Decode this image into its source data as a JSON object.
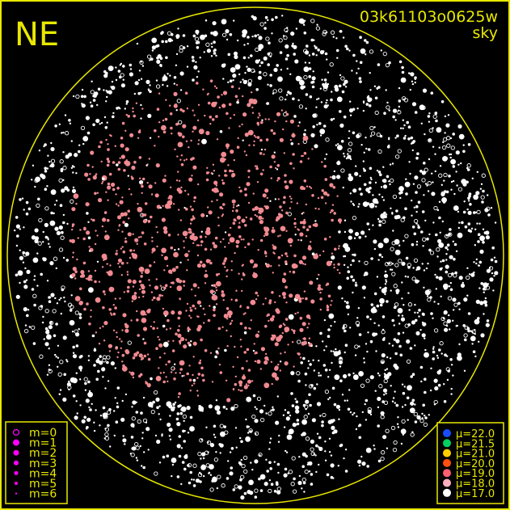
{
  "chart_data": {
    "type": "scatter",
    "title": "03k61103o0625w",
    "subtitle": "sky",
    "corner_label": "NE",
    "frame_color": "#e8e800",
    "horizon_color": "#e8e800",
    "magnitude_legend": {
      "color": "#ff00ff",
      "entries": [
        "m=0",
        "m=1",
        "m=2",
        "m=3",
        "m=4",
        "m=5",
        "m=6"
      ]
    },
    "sky_brightness_legend": {
      "entries": [
        {
          "label": "μ=22.0",
          "color": "#1a4cff"
        },
        {
          "label": "μ=21.5",
          "color": "#00d060"
        },
        {
          "label": "μ=21.0",
          "color": "#ffd000"
        },
        {
          "label": "μ=20.0",
          "color": "#ff5010"
        },
        {
          "label": "μ=19.0",
          "color": "#ff6070"
        },
        {
          "label": "μ=18.0",
          "color": "#ffb0c0"
        },
        {
          "label": "μ=17.0",
          "color": "#ffffff"
        }
      ]
    },
    "star_colors": {
      "clear": "#ffffff",
      "bright_sky": "#f08a90"
    }
  }
}
